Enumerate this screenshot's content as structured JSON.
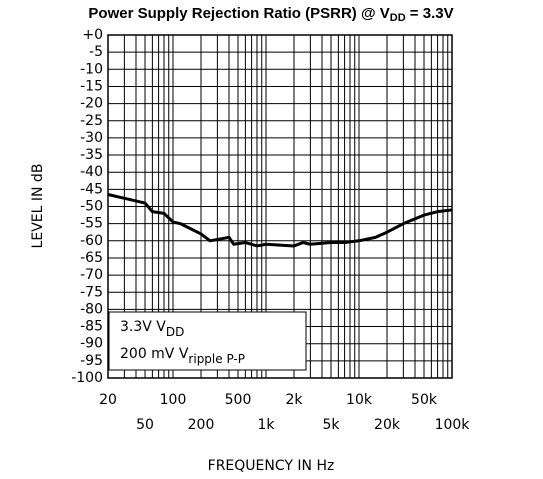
{
  "chart_data": {
    "type": "line",
    "title": {
      "main": "Power Supply Rejection Ratio (PSRR) @ V",
      "sub": "DD",
      "end": " = 3.3V"
    },
    "x_label": "FREQUENCY IN Hz",
    "y_label": "LEVEL IN dB",
    "x_scale": "log",
    "xlim": [
      20,
      100000
    ],
    "ylim": [
      -100,
      0
    ],
    "xticks": [
      20,
      50,
      100,
      200,
      500,
      {
        "value": 1000,
        "label": "1k"
      },
      {
        "value": 2000,
        "label": "2k"
      },
      {
        "value": 5000,
        "label": "5k"
      },
      {
        "value": 10000,
        "label": "10k"
      },
      {
        "value": 20000,
        "label": "20k"
      },
      {
        "value": 50000,
        "label": "50k"
      },
      {
        "value": 100000,
        "label": "100k"
      }
    ],
    "x_gridlines": [
      20,
      30,
      40,
      50,
      60,
      70,
      80,
      90,
      100,
      200,
      300,
      400,
      500,
      600,
      700,
      800,
      900,
      1000,
      2000,
      3000,
      4000,
      5000,
      6000,
      7000,
      8000,
      9000,
      10000,
      20000,
      30000,
      40000,
      50000,
      60000,
      70000,
      80000,
      90000,
      100000
    ],
    "yticks": [
      {
        "value": 0,
        "label": "+0"
      },
      -5,
      -10,
      -15,
      -20,
      -25,
      -30,
      -35,
      -40,
      -45,
      -50,
      -55,
      -60,
      -65,
      -70,
      -75,
      -80,
      -85,
      -90,
      -95,
      -100
    ],
    "grid": true,
    "annotations": [
      {
        "text": "3.3V V",
        "sub": "DD"
      },
      {
        "text": "200 mV V",
        "sub": "ripple P-P"
      }
    ],
    "series": [
      {
        "name": "PSRR",
        "color": "#000000",
        "x": [
          20,
          50,
          60,
          80,
          100,
          120,
          200,
          250,
          400,
          450,
          600,
          800,
          1000,
          2000,
          2500,
          3000,
          5000,
          7000,
          10000,
          15000,
          20000,
          30000,
          50000,
          70000,
          100000
        ],
        "values": [
          -46.5,
          -49,
          -51.5,
          -52,
          -54.5,
          -55,
          -58,
          -60,
          -59,
          -61,
          -60.5,
          -61.5,
          -61,
          -61.5,
          -60.5,
          -61,
          -60.5,
          -60.5,
          -60,
          -59,
          -57.5,
          -55,
          -52.5,
          -51.5,
          -51
        ]
      }
    ]
  }
}
